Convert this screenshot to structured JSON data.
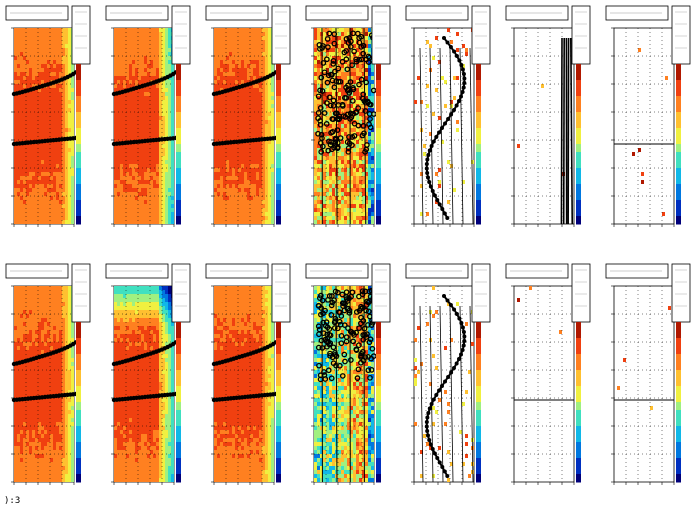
{
  "status": {
    "text": "):3"
  },
  "colors": {
    "palette": [
      "#00007a",
      "#0030c0",
      "#0078e0",
      "#10b8e8",
      "#40e0c0",
      "#a0f080",
      "#f0f040",
      "#ffc030",
      "#ff8020",
      "#f04010",
      "#b01800"
    ],
    "marker": "#000000"
  },
  "chart_data": [
    {
      "type": "heatmap",
      "row": 1,
      "col": 1,
      "variant": "smooth-red",
      "lines": "two-tracks"
    },
    {
      "type": "heatmap",
      "row": 1,
      "col": 2,
      "variant": "smooth-red",
      "lines": "two-tracks"
    },
    {
      "type": "heatmap",
      "row": 1,
      "col": 3,
      "variant": "smooth-red",
      "lines": "two-tracks"
    },
    {
      "type": "heatmap",
      "row": 1,
      "col": 4,
      "variant": "noisy",
      "lines": "cloud"
    },
    {
      "type": "heatmap",
      "row": 1,
      "col": 5,
      "variant": "sparse",
      "lines": "swirl"
    },
    {
      "type": "heatmap",
      "row": 1,
      "col": 6,
      "variant": "empty",
      "lines": "vertical-band"
    },
    {
      "type": "heatmap",
      "row": 1,
      "col": 7,
      "variant": "empty",
      "lines": "hline"
    },
    {
      "type": "heatmap",
      "row": 2,
      "col": 1,
      "variant": "smooth-red",
      "lines": "two-tracks"
    },
    {
      "type": "heatmap",
      "row": 2,
      "col": 2,
      "variant": "smooth-green-top",
      "lines": "two-tracks"
    },
    {
      "type": "heatmap",
      "row": 2,
      "col": 3,
      "variant": "smooth-red",
      "lines": "two-tracks"
    },
    {
      "type": "heatmap",
      "row": 2,
      "col": 4,
      "variant": "noisy-blue",
      "lines": "cloud"
    },
    {
      "type": "heatmap",
      "row": 2,
      "col": 5,
      "variant": "sparse",
      "lines": "swirl"
    },
    {
      "type": "heatmap",
      "row": 2,
      "col": 6,
      "variant": "empty",
      "lines": "hline-dots"
    },
    {
      "type": "heatmap",
      "row": 2,
      "col": 7,
      "variant": "empty",
      "lines": "hline"
    }
  ]
}
